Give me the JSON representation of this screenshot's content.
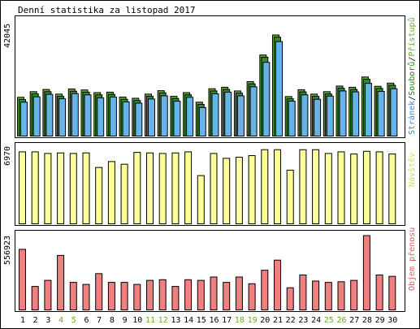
{
  "title": "Denní statistika za listopad 2017",
  "colors": {
    "frame": "#000000",
    "hits": "#66aa33",
    "files": "#338833",
    "pages": "#66b3e8",
    "visits": "#ffff99",
    "kbytes": "#f08080",
    "weekend_label": "#66aa33",
    "weekday_label": "#000000",
    "pages_label": "#4488cc",
    "files_label": "#228822",
    "hits_label": "#66aa33",
    "visits_label": "#d8d860",
    "kbytes_label": "#d86060"
  },
  "chart_data": [
    {
      "type": "bar",
      "categories": [
        "1",
        "2",
        "3",
        "4",
        "5",
        "6",
        "7",
        "8",
        "9",
        "10",
        "11",
        "12",
        "13",
        "14",
        "15",
        "16",
        "17",
        "18",
        "19",
        "20",
        "21",
        "22",
        "23",
        "24",
        "25",
        "26",
        "27",
        "28",
        "29",
        "30"
      ],
      "weekend_days": [
        "4",
        "5",
        "11",
        "12",
        "18",
        "19",
        "25",
        "26"
      ],
      "ylabel_max": "42045",
      "ylim": [
        0,
        42045
      ],
      "series": [
        {
          "name": "Přístupů",
          "values": [
            16200,
            18500,
            19400,
            17500,
            19600,
            19200,
            18100,
            18300,
            16300,
            15800,
            17500,
            18900,
            16600,
            18100,
            14200,
            19700,
            20300,
            18800,
            22600,
            33500,
            41700,
            16500,
            19300,
            17500,
            18500,
            20800,
            20300,
            24500,
            20700,
            22000
          ]
        },
        {
          "name": "Souborů",
          "values": [
            15300,
            17600,
            18500,
            16600,
            18700,
            18300,
            17200,
            17400,
            15400,
            14900,
            16600,
            18000,
            15700,
            17200,
            13300,
            18800,
            19400,
            17900,
            21700,
            32600,
            40800,
            15600,
            18400,
            16600,
            17600,
            19900,
            19400,
            23600,
            19800,
            21100
          ]
        },
        {
          "name": "Stránek",
          "values": [
            14200,
            16400,
            17400,
            15600,
            17700,
            17200,
            16000,
            16300,
            14300,
            13800,
            15500,
            16800,
            14600,
            16200,
            12000,
            17600,
            18300,
            16800,
            20500,
            30500,
            39000,
            14600,
            17200,
            15400,
            16700,
            18800,
            18400,
            21900,
            18600,
            19700
          ]
        }
      ]
    },
    {
      "type": "bar",
      "categories": [
        "1",
        "2",
        "3",
        "4",
        "5",
        "6",
        "7",
        "8",
        "9",
        "10",
        "11",
        "12",
        "13",
        "14",
        "15",
        "16",
        "17",
        "18",
        "19",
        "20",
        "21",
        "22",
        "23",
        "24",
        "25",
        "26",
        "27",
        "28",
        "29",
        "30"
      ],
      "ylabel_max": "6970",
      "ylim": [
        0,
        6970
      ],
      "series": [
        {
          "name": "Návštěv",
          "values": [
            6750,
            6750,
            6600,
            6650,
            6600,
            6650,
            5300,
            5850,
            5600,
            6700,
            6650,
            6600,
            6650,
            6750,
            4550,
            6600,
            6150,
            6250,
            6400,
            6950,
            6950,
            5050,
            6950,
            6950,
            6600,
            6750,
            6550,
            6800,
            6750,
            6550
          ]
        }
      ]
    },
    {
      "type": "bar",
      "categories": [
        "1",
        "2",
        "3",
        "4",
        "5",
        "6",
        "7",
        "8",
        "9",
        "10",
        "11",
        "12",
        "13",
        "14",
        "15",
        "16",
        "17",
        "18",
        "19",
        "20",
        "21",
        "22",
        "23",
        "24",
        "25",
        "26",
        "27",
        "28",
        "29",
        "30"
      ],
      "ylabel_max": "556923",
      "ylim": [
        0,
        556923
      ],
      "series": [
        {
          "name": "Objem přenosu",
          "values": [
            455000,
            180000,
            225000,
            410000,
            210000,
            195000,
            275000,
            210000,
            210000,
            195000,
            225000,
            230000,
            180000,
            230000,
            225000,
            250000,
            210000,
            250000,
            200000,
            300000,
            375000,
            170000,
            265000,
            220000,
            210000,
            215000,
            225000,
            556923,
            265000,
            255000
          ]
        }
      ]
    }
  ]
}
